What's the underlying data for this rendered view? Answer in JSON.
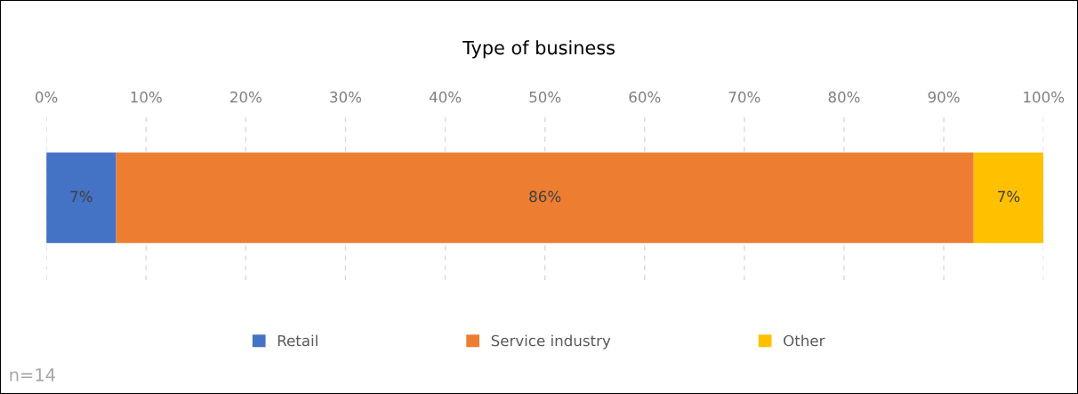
{
  "chart_data": {
    "type": "bar",
    "orientation": "horizontal",
    "stacked": true,
    "title": "Type of business",
    "categories": [
      null
    ],
    "series": [
      {
        "name": "Retail",
        "color": "#4472c4",
        "values": [
          7
        ],
        "value_labels": [
          "7%"
        ]
      },
      {
        "name": "Service industry",
        "color": "#ed7d31",
        "values": [
          86
        ],
        "value_labels": [
          "86%"
        ]
      },
      {
        "name": "Other",
        "color": "#ffc000",
        "values": [
          7
        ],
        "value_labels": [
          "7%"
        ]
      }
    ],
    "xlim": [
      0,
      100
    ],
    "xticks": [
      {
        "value": 0,
        "label": "0%"
      },
      {
        "value": 10,
        "label": "10%"
      },
      {
        "value": 20,
        "label": "20%"
      },
      {
        "value": 30,
        "label": "30%"
      },
      {
        "value": 40,
        "label": "40%"
      },
      {
        "value": 50,
        "label": "50%"
      },
      {
        "value": 60,
        "label": "60%"
      },
      {
        "value": 70,
        "label": "70%"
      },
      {
        "value": 80,
        "label": "80%"
      },
      {
        "value": 90,
        "label": "90%"
      },
      {
        "value": 100,
        "label": "100%"
      }
    ],
    "grid": "x",
    "legend": "bottom",
    "tick_labels": "x",
    "annotations": [
      "n=14"
    ]
  }
}
